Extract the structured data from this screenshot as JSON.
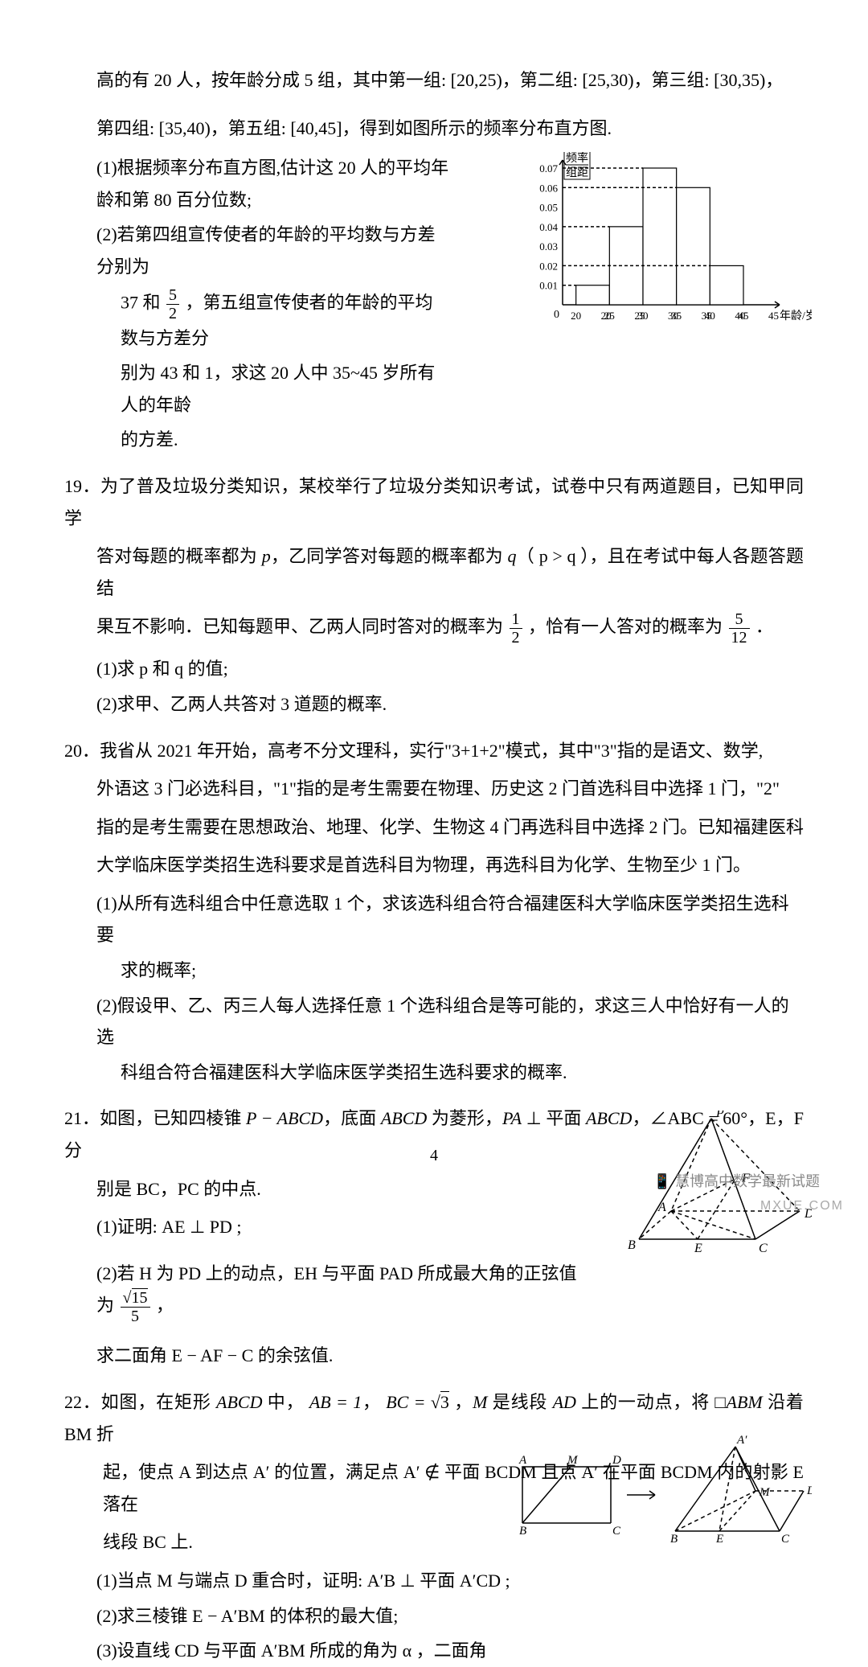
{
  "intro_line1": "高的有 20 人，按年龄分成 5 组，其中第一组: [20,25)，第二组: [25,30)，第三组: [30,35)，",
  "intro_line2": "第四组: [35,40)，第五组: [40,45]，得到如图所示的频率分布直方图.",
  "q18_sub1": "(1)根据频率分布直方图,估计这 20 人的平均年龄和第 80 百分位数;",
  "q18_sub2_a": "(2)若第四组宣传使者的年龄的平均数与方差分别为",
  "q18_sub2_b_prefix": "37 和",
  "q18_sub2_b_suffix": "，第五组宣传使者的年龄的平均数与方差分",
  "q18_sub2_c": "别为 43 和 1，求这 20 人中 35~45 岁所有人的年龄",
  "q18_sub2_d": "的方差.",
  "hist": {
    "yaxis_label_top": "频率",
    "yaxis_label_bot": "组距",
    "xaxis_label": "年龄/岁",
    "yticks": [
      "0.01",
      "0.02",
      "0.03",
      "0.04",
      "0.05",
      "0.06",
      "0.07"
    ],
    "xticks": [
      "0",
      "20",
      "25",
      "30",
      "35",
      "40",
      "45"
    ],
    "bars": [
      0.01,
      0.04,
      0.07,
      0.06,
      0.02
    ],
    "bar_color": "#ffffff",
    "border_color": "#000000",
    "dash_color": "#000000",
    "axis_width": 1.5
  },
  "q19_num": "19．",
  "q19_l1": "为了普及垃圾分类知识，某校举行了垃圾分类知识考试，试卷中只有两道题目，已知甲同学",
  "q19_l2_prefix": "答对每题的概率都为 ",
  "q19_l2_p": "p",
  "q19_l2_mid": "，乙同学答对每题的概率都为 ",
  "q19_l2_q": "q",
  "q19_l2_paren": "（ p > q ）",
  "q19_l2_suffix": "，且在考试中每人各题答题结",
  "q19_l3_prefix": "果互不影响．已知每题甲、乙两人同时答对的概率为",
  "q19_l3_mid": "，恰有一人答对的概率为",
  "q19_l3_suffix": "．",
  "q19_sub1": "(1)求 p 和 q 的值;",
  "q19_sub2": "(2)求甲、乙两人共答对 3 道题的概率.",
  "q20_num": "20．",
  "q20_l1": "我省从 2021 年开始，高考不分文理科，实行\"3+1+2\"模式，其中\"3\"指的是语文、数学,",
  "q20_l2": "外语这 3 门必选科目，\"1\"指的是考生需要在物理、历史这 2 门首选科目中选择 1 门，\"2\"",
  "q20_l3": "指的是考生需要在思想政治、地理、化学、生物这 4 门再选科目中选择 2 门。已知福建医科",
  "q20_l4": "大学临床医学类招生选科要求是首选科目为物理，再选科目为化学、生物至少 1 门。",
  "q20_sub1a": "(1)从所有选科组合中任意选取 1 个，求该选科组合符合福建医科大学临床医学类招生选科要",
  "q20_sub1b": "求的概率;",
  "q20_sub2a": "(2)假设甲、乙、丙三人每人选择任意 1 个选科组合是等可能的，求这三人中恰好有一人的选",
  "q20_sub2b": "科组合符合福建医科大学临床医学类招生选科要求的概率.",
  "q21_num": "21．",
  "q21_l1_prefix": "如图，已知四棱锥 ",
  "q21_l1_pabcd": "P − ABCD",
  "q21_l1_mid1": "，底面 ",
  "q21_l1_abcd": "ABCD",
  "q21_l1_mid2": " 为菱形，",
  "q21_l1_pa": "PA",
  "q21_l1_perp": " ⊥ 平面 ",
  "q21_l1_abcd2": "ABCD",
  "q21_l1_angle": "，∠ABC = 60°",
  "q21_l1_suffix": "，E，F 分",
  "q21_l2": "别是 BC，PC 的中点.",
  "q21_sub1": "(1)证明:  AE ⊥ PD ;",
  "q21_sub2_prefix": "(2)若 H 为 PD 上的动点，EH 与平面 PAD 所成最大角的正弦值为",
  "q21_sub2_suffix": "，",
  "q21_sub2_line2": "求二面角 E − AF − C 的余弦值.",
  "pyramid": {
    "labels": {
      "P": "P",
      "A": "A",
      "B": "B",
      "C": "C",
      "D": "D",
      "E": "E",
      "F": "F"
    },
    "stroke": "#000000"
  },
  "q22_num": "22．",
  "q22_l1_prefix": "如图，在矩形 ",
  "q22_l1_abcd": "ABCD",
  "q22_l1_mid1": " 中， ",
  "q22_l1_ab": "AB = 1",
  "q22_l1_mid2": "， ",
  "q22_l1_bc_prefix": "BC = ",
  "q22_l1_bc_mid": " ，",
  "q22_l1_m": "M",
  "q22_l1_mid3": " 是线段 ",
  "q22_l1_ad": "AD",
  "q22_l1_mid4": " 上的一动点，将 □",
  "q22_l1_abm": "ABM",
  "q22_l1_suffix": " 沿着 BM 折",
  "q22_l2": "起，使点 A 到达点 A′ 的位置，满足点 A′ ∉ 平面 BCDM 且点 A′ 在平面 BCDM 内的射影 E 落在",
  "q22_l3": "线段 BC 上.",
  "q22_sub1": "(1)当点 M 与端点 D 重合时，证明:  A′B ⊥ 平面 A′CD ;",
  "q22_sub2": "(2)求三棱锥 E − A′BM 的体积的最大值;",
  "q22_sub3": "(3)设直线 CD 与平面 A′BM 所成的角为 α ，二面角",
  "fold": {
    "labels": {
      "A": "A",
      "B": "B",
      "C": "C",
      "D": "D",
      "M": "M",
      "A2": "A′",
      "E": "E"
    },
    "stroke": "#000000"
  },
  "page_number": "4",
  "watermark1_icon": "📱",
  "watermark1_text": "慧博高中数学最新试题",
  "watermark2_text": "MXUE.COM"
}
